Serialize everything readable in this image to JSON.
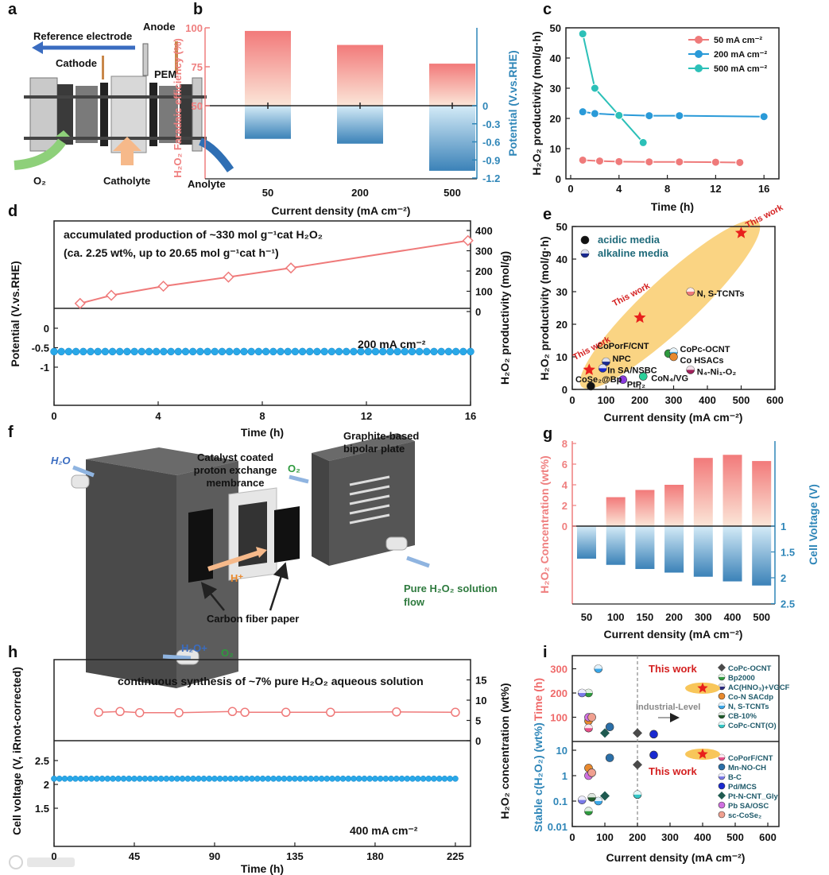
{
  "panel_letters": [
    "a",
    "b",
    "c",
    "d",
    "e",
    "f",
    "g",
    "h",
    "i"
  ],
  "panel_a": {
    "reference_electrode": "Reference electrode",
    "anode": "Anode",
    "cathode": "Cathode",
    "pem": "PEM",
    "o2": "O₂",
    "catholyte": "Catholyte",
    "anolyte": "Anolyte"
  },
  "panel_f": {
    "h2o_in": "H₂O",
    "membrane_label": [
      "Catalyst coated",
      "proton exchange",
      "membrance"
    ],
    "o2": "O₂",
    "plate_label": [
      "Graphite-based",
      "bipolar plate"
    ],
    "proton": "H⁺",
    "outflow_label": [
      "Pure H₂O₂ solution",
      "flow"
    ],
    "carbon_paper": "Carbon fiber paper",
    "h2o_plus": "H₂O+",
    "o2_out": "O₂"
  },
  "watermark": "大数跨境",
  "chart_data": [
    {
      "panel": "b",
      "type": "bar",
      "categories": [
        "50",
        "200",
        "500"
      ],
      "xlabel": "Current density (mA cm⁻²)",
      "ylabel_left": "H₂O₂ Faradaic efficiency (%)",
      "ylabel_right": "Potential (V.vs.RHE)",
      "ylim_left": [
        50,
        100
      ],
      "ylim_right": [
        -1.2,
        0
      ],
      "yticks_left": [
        50,
        75,
        100
      ],
      "yticks_right": [
        0,
        -0.3,
        -0.6,
        -0.9,
        -1.2
      ],
      "series": [
        {
          "name": "Faradaic efficiency",
          "values": [
            98,
            89,
            77
          ]
        },
        {
          "name": "Potential",
          "values": [
            -0.55,
            -0.63,
            -1.08
          ]
        }
      ],
      "colors": {
        "left": "#ef7f7f",
        "right": "#2f86b8"
      }
    },
    {
      "panel": "c",
      "type": "line",
      "xlabel": "Time (h)",
      "ylabel": "H₂O₂ productivity (mol/g·h)",
      "xlim": [
        0,
        16
      ],
      "ylim": [
        0,
        50
      ],
      "xticks": [
        0,
        4,
        8,
        12,
        16
      ],
      "yticks": [
        0,
        10,
        20,
        30,
        40,
        50
      ],
      "legend": "top-right",
      "series": [
        {
          "name": "50 mA cm⁻²",
          "color": "#ef7a7a",
          "points": [
            [
              1,
              6.2
            ],
            [
              2.4,
              5.9
            ],
            [
              4,
              5.7
            ],
            [
              6.5,
              5.6
            ],
            [
              9,
              5.6
            ],
            [
              12,
              5.5
            ],
            [
              14,
              5.4
            ]
          ]
        },
        {
          "name": "200 mA cm⁻²",
          "color": "#2a9ad8",
          "points": [
            [
              1,
              22.2
            ],
            [
              2,
              21.6
            ],
            [
              4,
              21.2
            ],
            [
              6.5,
              20.9
            ],
            [
              9,
              20.9
            ],
            [
              16,
              20.6
            ]
          ]
        },
        {
          "name": "500 mA cm⁻²",
          "color": "#2cc0b8",
          "points": [
            [
              1,
              48
            ],
            [
              2,
              30
            ],
            [
              4,
              21
            ],
            [
              6,
              12
            ]
          ]
        }
      ]
    },
    {
      "panel": "d",
      "type": "line",
      "xlabel": "Time (h)",
      "ylabel_left": "Potential (V.vs.RHE)",
      "ylabel_right": "H₂O₂  productivity (mol/g)",
      "xlim": [
        0,
        16
      ],
      "xticks": [
        0,
        4,
        8,
        12,
        16
      ],
      "yticks_left": [
        0,
        -0.5,
        -1
      ],
      "yticks_right": [
        0,
        100,
        200,
        300,
        400
      ],
      "annotation_lines": [
        "accumulated production of ~330 mol g⁻¹cat H₂O₂",
        "(ca. 2.25 wt%, up to 20.65 mol g⁻¹cat h⁻¹)"
      ],
      "condition": "200 mA cm⁻²",
      "productivity": {
        "points": [
          [
            1,
            40
          ],
          [
            2.2,
            80
          ],
          [
            4.2,
            125
          ],
          [
            6.7,
            170
          ],
          [
            9.1,
            215
          ],
          [
            15.9,
            350
          ]
        ],
        "color": "#ef7a7a"
      },
      "potential": {
        "t_range": [
          0,
          16
        ],
        "count": 58,
        "value": -0.6,
        "color": "#29a8e8"
      }
    },
    {
      "panel": "e",
      "type": "scatter",
      "xlabel": "Current density (mA cm⁻²)",
      "ylabel": "H₂O₂ productivity (mol/g·h)",
      "xlim": [
        0,
        600
      ],
      "ylim": [
        0,
        50
      ],
      "xticks": [
        0,
        100,
        200,
        300,
        400,
        500,
        600
      ],
      "yticks": [
        0,
        10,
        20,
        30,
        40,
        50
      ],
      "legend": [
        {
          "label": "acidic media",
          "shape": "full",
          "color": "#111111"
        },
        {
          "label": "alkaline media",
          "shape": "half",
          "color": "#1a2a90"
        }
      ],
      "this_work_label": "This work",
      "this_work": [
        [
          50,
          6
        ],
        [
          200,
          22
        ],
        [
          500,
          48
        ]
      ],
      "points": [
        {
          "name": "CoSe₂@Bp",
          "x": 55,
          "y": 1,
          "color": "#111111",
          "shape": "full"
        },
        {
          "name": "NPC",
          "x": 100,
          "y": 8.5,
          "color": "#1a2a90",
          "shape": "half"
        },
        {
          "name": "In SA/NSBC",
          "x": 90,
          "y": 6.5,
          "color": "#1a2ad0",
          "shape": "half"
        },
        {
          "name": "PtP₂",
          "x": 150,
          "y": 3,
          "color": "#8a3ae0",
          "shape": "full"
        },
        {
          "name": "CoN₄/VG",
          "x": 210,
          "y": 4,
          "color": "#2ccf9a",
          "shape": "full"
        },
        {
          "name": "CoPorF/CNT",
          "x": 285,
          "y": 11,
          "color": "#2e9a3e",
          "shape": "full"
        },
        {
          "name": "CoPc-OCNT",
          "x": 300,
          "y": 11.5,
          "color": "#5ab8e8",
          "shape": "half"
        },
        {
          "name": "Co HSACs",
          "x": 300,
          "y": 10,
          "color": "#e8892e",
          "shape": "full"
        },
        {
          "name": "N₄-Ni₁-O₂",
          "x": 350,
          "y": 6,
          "color": "#a0205a",
          "shape": "half"
        },
        {
          "name": "N, S-TCNTs",
          "x": 350,
          "y": 30,
          "color": "#ef7a7a",
          "shape": "half"
        }
      ]
    },
    {
      "panel": "g",
      "type": "bar",
      "categories": [
        "50",
        "100",
        "150",
        "200",
        "300",
        "400",
        "500"
      ],
      "xlabel": "Current density (mA cm⁻²)",
      "ylabel_left": "H₂O₂ Concentration (wt%)",
      "ylabel_right": "Cell Voltage (V)",
      "ylim_left": [
        0,
        8
      ],
      "ylim_right": [
        1,
        2.5
      ],
      "yticks_left": [
        0,
        2,
        4,
        6,
        8
      ],
      "yticks_right": [
        1,
        1.5,
        2,
        2.5
      ],
      "series": [
        {
          "name": "H₂O₂ concentration",
          "values": [
            0,
            2.8,
            3.5,
            4.0,
            6.6,
            6.9,
            6.3
          ]
        },
        {
          "name": "Cell voltage",
          "values": [
            1.63,
            1.75,
            1.83,
            1.9,
            1.98,
            2.07,
            2.15
          ]
        }
      ],
      "colors": {
        "left": "#ef7f7f",
        "right": "#2f86b8"
      }
    },
    {
      "panel": "h",
      "type": "line",
      "xlabel": "Time (h)",
      "ylabel_left": "Cell voltage (V, iRnot-corrected)",
      "ylabel_right": "H₂O₂ concentration (wt%)",
      "xlim": [
        0,
        225
      ],
      "xticks": [
        0,
        45,
        90,
        135,
        180,
        225
      ],
      "yticks_left": [
        1.5,
        2,
        2.5
      ],
      "yticks_right": [
        0,
        5,
        10,
        15
      ],
      "annotation": "continuous synthesis of ~7% pure H₂O₂ aqueous solution",
      "condition": "400 mA cm⁻²",
      "concentration": {
        "points": [
          [
            25,
            7
          ],
          [
            37,
            7.2
          ],
          [
            48,
            6.9
          ],
          [
            70,
            6.9
          ],
          [
            100,
            7.2
          ],
          [
            107,
            7
          ],
          [
            130,
            7
          ],
          [
            155,
            7
          ],
          [
            192,
            7.1
          ],
          [
            225,
            7
          ]
        ],
        "color": "#ef7a7a"
      },
      "voltage": {
        "t_range": [
          0,
          225
        ],
        "count": 76,
        "value": 2.12,
        "color": "#29a8e8"
      }
    },
    {
      "panel": "i",
      "type": "scatter",
      "xlabel": "Current density (mA cm⁻²)",
      "ylabel_top": "Time (h)",
      "ylabel_bottom": "Stable c(H₂O₂) (wt%)",
      "xlim": [
        0,
        650
      ],
      "xticks": [
        0,
        100,
        200,
        300,
        400,
        500,
        600
      ],
      "yticks_top": [
        100,
        200,
        300
      ],
      "yticks_bottom": [
        0.01,
        0.1,
        1,
        10
      ],
      "yscale_bottom": "log",
      "industrial_label": "Industrial-Level",
      "industrial_threshold": 200,
      "this_work_label": "This work",
      "this_work_time": [
        400,
        220
      ],
      "this_work_stability": [
        400,
        7
      ],
      "materials": [
        {
          "name": "CoPc-OCNT",
          "color": "#4a4a4a",
          "shape": "diamond",
          "time": [
            200,
            35
          ],
          "stability": [
            200,
            2.7
          ]
        },
        {
          "name": "Bp2000",
          "color": "#2e9a3e",
          "shape": "half",
          "time": [
            50,
            200
          ],
          "stability": [
            50,
            0.04
          ]
        },
        {
          "name": "AC(HNO₃)+VGCF",
          "color": "#2b2b80",
          "shape": "half",
          "time": null,
          "stability": null
        },
        {
          "name": "Co-N SACdp",
          "color": "#e8892e",
          "shape": "full",
          "time": [
            50,
            85
          ],
          "stability": [
            50,
            2
          ]
        },
        {
          "name": "N, S-TCNTs",
          "color": "#3aa7e8",
          "shape": "half",
          "time": [
            80,
            300
          ],
          "stability": [
            80,
            0.1
          ]
        },
        {
          "name": "CB-10%",
          "color": "#1f5a2a",
          "shape": "half",
          "time": null,
          "stability": [
            60,
            0.14
          ]
        },
        {
          "name": "CoPc-CNT(O)",
          "color": "#35c6c6",
          "shape": "half",
          "time": null,
          "stability": [
            200,
            0.18
          ]
        },
        {
          "name": "CoPorF/CNT",
          "color": "#e8508a",
          "shape": "half",
          "time": [
            50,
            55
          ],
          "stability": null
        },
        {
          "name": "Mn-NO-CH",
          "color": "#2a6fa8",
          "shape": "full",
          "time": [
            115,
            60
          ],
          "stability": [
            115,
            5
          ]
        },
        {
          "name": "B-C",
          "color": "#7a7ae8",
          "shape": "half",
          "time": [
            30,
            200
          ],
          "stability": [
            30,
            0.11
          ]
        },
        {
          "name": "Pd/MCS",
          "color": "#1a2ad0",
          "shape": "full",
          "time": [
            250,
            30
          ],
          "stability": [
            250,
            6.5
          ]
        },
        {
          "name": "Pt-N-CNT_Gly",
          "color": "#1f5a50",
          "shape": "diamond",
          "time": [
            100,
            35
          ],
          "stability": [
            100,
            0.16
          ]
        },
        {
          "name": "Pb SA/OSC",
          "color": "#d070e0",
          "shape": "full",
          "time": [
            50,
            100
          ],
          "stability": [
            50,
            1
          ]
        },
        {
          "name": "sc-CoSe₂",
          "color": "#f0a090",
          "shape": "full",
          "time": [
            60,
            100
          ],
          "stability": [
            60,
            1.3
          ]
        }
      ]
    }
  ]
}
